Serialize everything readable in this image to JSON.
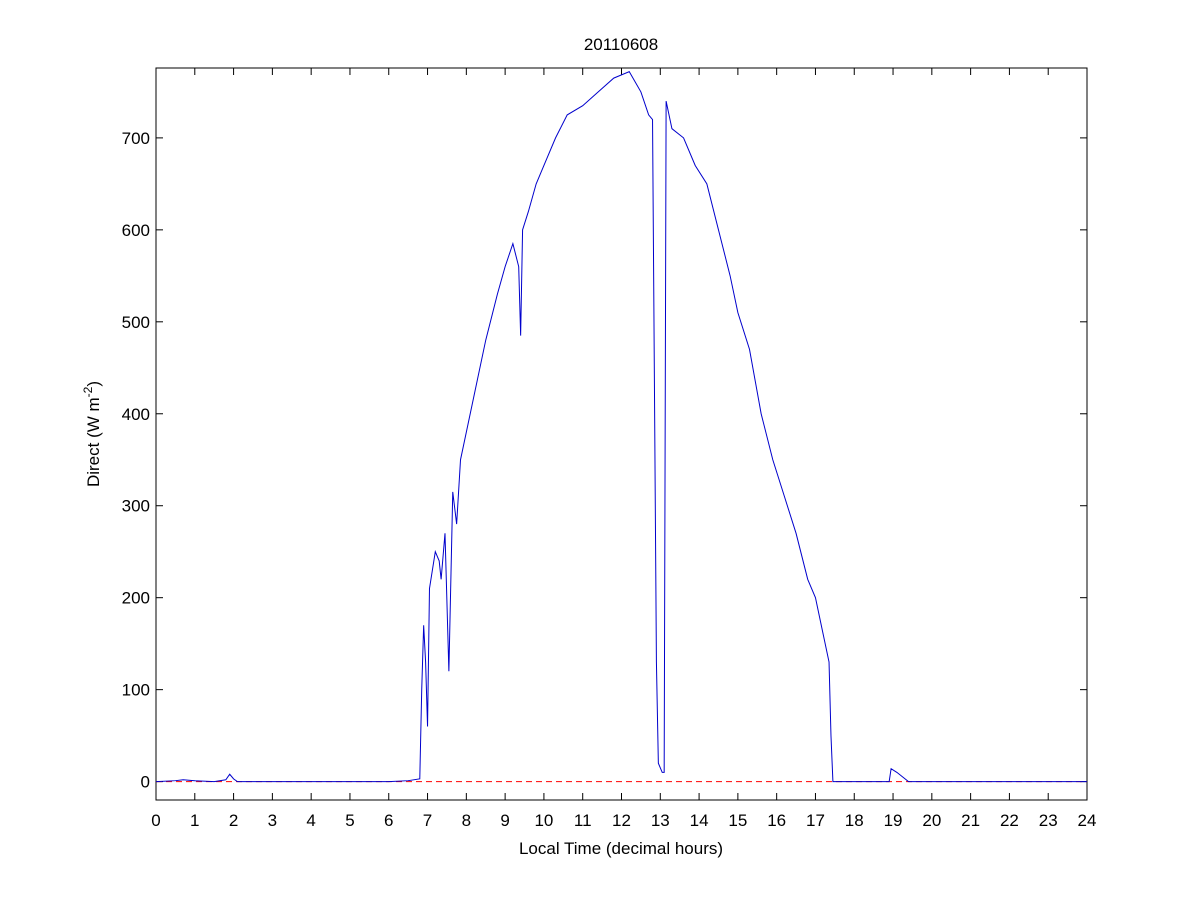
{
  "chart_data": {
    "type": "line",
    "title": "20110608",
    "xlabel": "Local Time (decimal hours)",
    "ylabel": {
      "text": "Direct (W m",
      "superscript": "-2",
      "suffix": ")"
    },
    "xlim": [
      0,
      24
    ],
    "ylim": [
      -20,
      776
    ],
    "xticks": [
      0,
      1,
      2,
      3,
      4,
      5,
      6,
      7,
      8,
      9,
      10,
      11,
      12,
      13,
      14,
      15,
      16,
      17,
      18,
      19,
      20,
      21,
      22,
      23,
      24
    ],
    "yticks": [
      0,
      100,
      200,
      300,
      400,
      500,
      600,
      700
    ],
    "reference_line": {
      "value": 0,
      "color": "#ff0000"
    },
    "series": [
      {
        "color": "#0000cc",
        "x": [
          0,
          0.5,
          0.7,
          1,
          1.5,
          1.8,
          1.9,
          2.0,
          2.1,
          3,
          6.0,
          6.5,
          6.8,
          6.85,
          6.9,
          6.95,
          7.0,
          7.05,
          7.2,
          7.3,
          7.35,
          7.45,
          7.55,
          7.65,
          7.75,
          7.85,
          8.0,
          8.2,
          8.5,
          8.8,
          9.0,
          9.2,
          9.35,
          9.4,
          9.45,
          9.6,
          9.8,
          10.0,
          10.3,
          10.6,
          11.0,
          11.4,
          11.8,
          12.2,
          12.5,
          12.7,
          12.8,
          12.9,
          12.95,
          13.05,
          13.1,
          13.15,
          13.3,
          13.6,
          13.9,
          14.2,
          14.5,
          14.8,
          15.0,
          15.3,
          15.6,
          15.9,
          16.2,
          16.5,
          16.8,
          17.0,
          17.2,
          17.35,
          17.4,
          17.45,
          17.6,
          18,
          18.9,
          18.95,
          19.1,
          19.4,
          24
        ],
        "values": [
          0,
          1,
          2,
          1,
          0,
          2,
          8,
          3,
          0,
          0,
          0,
          1,
          3,
          100,
          170,
          130,
          60,
          210,
          250,
          240,
          220,
          270,
          120,
          315,
          280,
          350,
          380,
          420,
          480,
          530,
          560,
          585,
          560,
          485,
          600,
          620,
          650,
          670,
          700,
          725,
          735,
          750,
          765,
          772,
          750,
          725,
          720,
          130,
          20,
          10,
          10,
          740,
          710,
          700,
          670,
          650,
          600,
          550,
          510,
          470,
          400,
          350,
          310,
          270,
          220,
          200,
          160,
          130,
          50,
          0,
          0,
          0,
          0,
          14,
          10,
          0,
          0
        ]
      }
    ]
  }
}
